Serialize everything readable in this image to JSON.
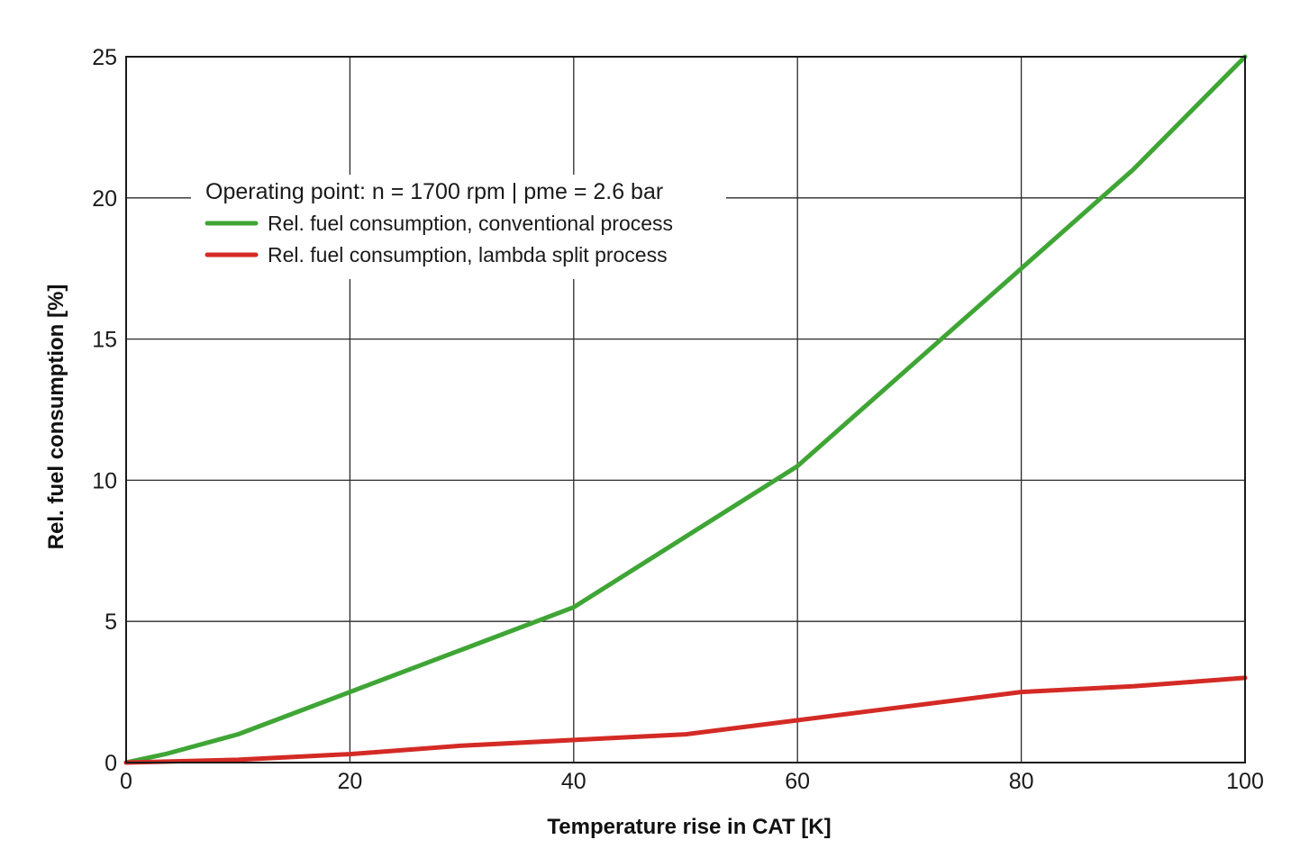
{
  "chart_data": {
    "type": "line",
    "title": "",
    "xlabel": "Temperature rise in CAT [K]",
    "ylabel": "Rel. fuel consumption [%]",
    "xlim": [
      0,
      100
    ],
    "ylim": [
      0,
      25
    ],
    "x_ticks": [
      0,
      20,
      40,
      60,
      80,
      100
    ],
    "y_ticks": [
      0,
      5,
      10,
      15,
      20,
      25
    ],
    "grid": true,
    "legend_placement": "top-left",
    "legend_title": "Operating point: n = 1700 rpm | pme = 2.6 bar",
    "series": [
      {
        "name": "Rel. fuel consumption, conventional process",
        "color": "#3fa535",
        "x": [
          0,
          3.5,
          10,
          20,
          30,
          40,
          50,
          60,
          70,
          80,
          90,
          100
        ],
        "y": [
          0,
          0.3,
          1.0,
          2.5,
          4.0,
          5.5,
          8.0,
          10.5,
          14.0,
          17.5,
          21.0,
          25.0
        ]
      },
      {
        "name": "Rel. fuel consumption, lambda split process",
        "color": "#d42a25",
        "x": [
          0,
          10,
          20,
          30,
          40,
          50,
          60,
          70,
          80,
          90,
          100
        ],
        "y": [
          0,
          0.1,
          0.3,
          0.6,
          0.8,
          1.0,
          1.5,
          2.0,
          2.5,
          2.7,
          3.0
        ]
      }
    ]
  }
}
